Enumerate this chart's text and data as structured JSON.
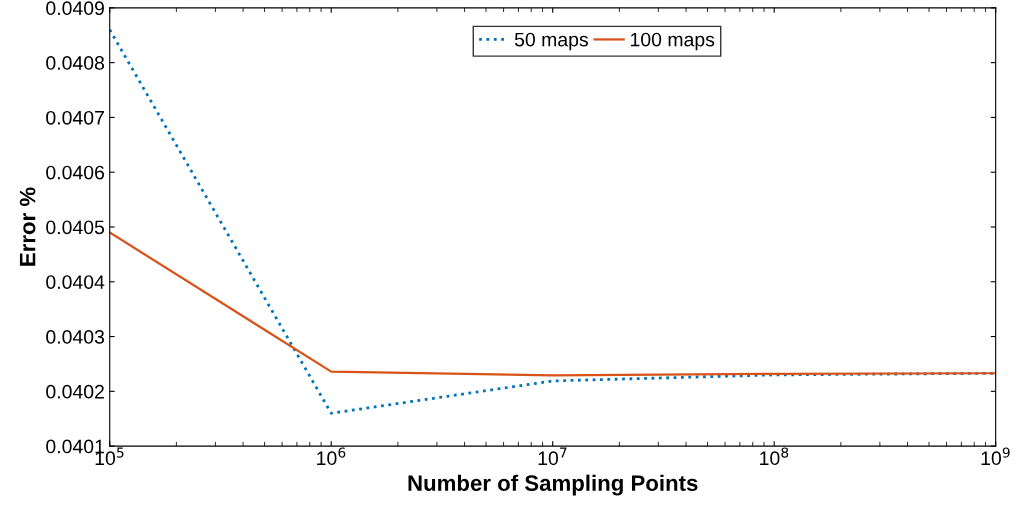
{
  "chart_data": {
    "type": "line",
    "xlabel": "Number of Sampling Points",
    "ylabel": "Error %",
    "log": "x",
    "xlim": [
      100000,
      1000000000
    ],
    "xticks": [
      {
        "value": 100000,
        "label": "10$^{5}$"
      },
      {
        "value": 1000000,
        "label": "10$^{6}$"
      },
      {
        "value": 10000000,
        "label": "10$^{7}$"
      },
      {
        "value": 100000000,
        "label": "10$^{8}$"
      },
      {
        "value": 1000000000,
        "label": "10$^{9}$"
      }
    ],
    "ylim": [
      0.0401,
      0.0409
    ],
    "yticks": [
      0.0401,
      0.0402,
      0.0403,
      0.0404,
      0.0405,
      0.0406,
      0.0407,
      0.0408,
      0.0409
    ],
    "x": [
      100000,
      1000000,
      10000000,
      100000000,
      1000000000
    ],
    "series": [
      {
        "name": "50 maps",
        "color": "#0072bd",
        "line_style": "dotted",
        "values": [
          0.04086,
          0.04016,
          0.040219,
          0.04023,
          0.040233
        ]
      },
      {
        "name": "100 maps",
        "color": "#d95319",
        "line_style": "solid",
        "values": [
          0.04049,
          0.040236,
          0.040229,
          0.040232,
          0.040233
        ]
      }
    ],
    "legend": "top",
    "grid": false
  }
}
